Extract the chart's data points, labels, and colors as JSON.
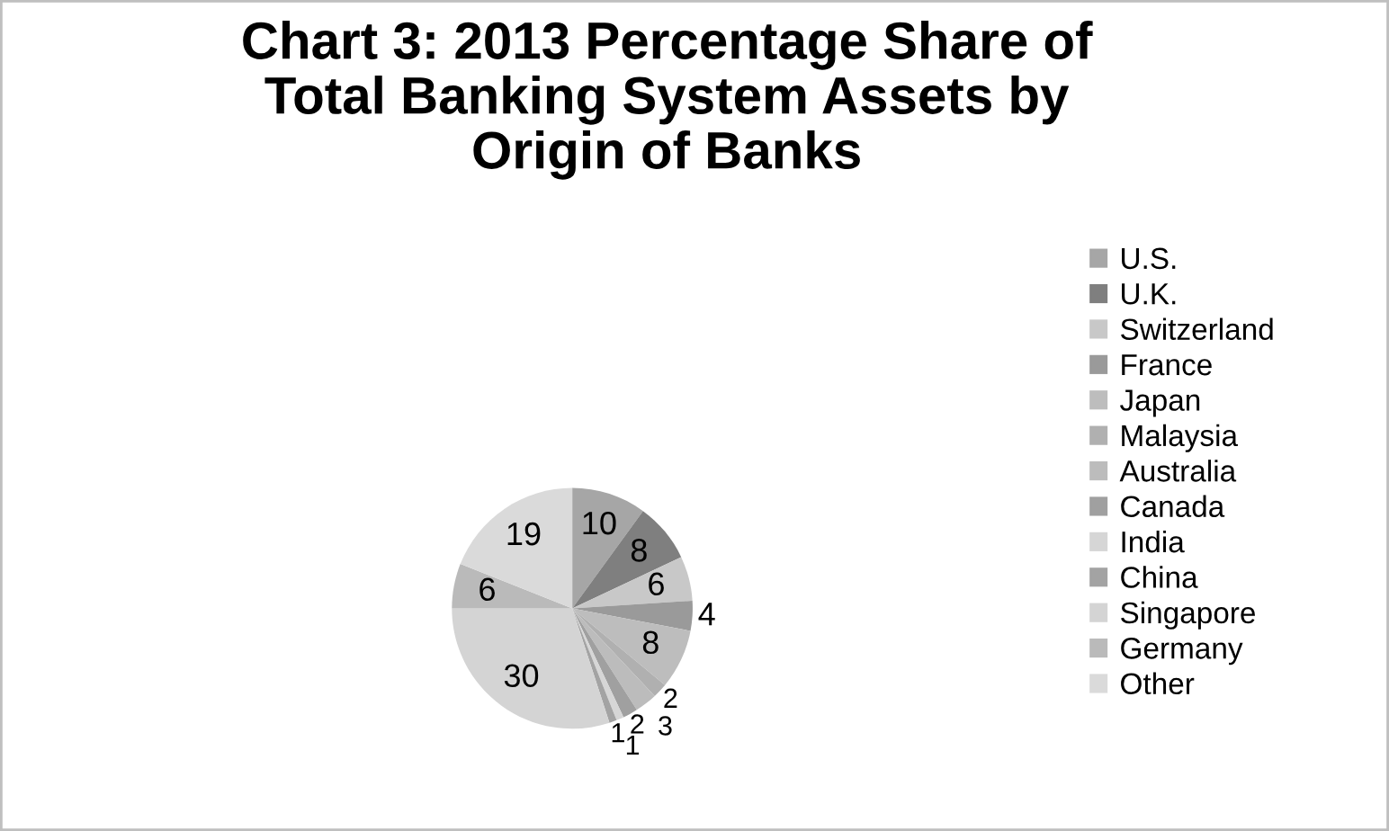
{
  "chart_data": {
    "type": "pie",
    "title": "Chart 3: 2013 Percentage Share of\nTotal Banking System Assets by\nOrigin of Banks",
    "categories": [
      "U.S.",
      "U.K.",
      "Switzerland",
      "France",
      "Japan",
      "Malaysia",
      "Australia",
      "Canada",
      "India",
      "China",
      "Singapore",
      "Germany",
      "Other"
    ],
    "values": [
      10,
      8,
      6,
      4,
      8,
      2,
      3,
      2,
      1,
      1,
      30,
      6,
      19
    ],
    "colors": [
      "#a6a6a6",
      "#7f7f7f",
      "#c8c8c8",
      "#9a9a9a",
      "#bdbdbd",
      "#b0b0b0",
      "#bcbcbc",
      "#a0a0a0",
      "#d6d6d6",
      "#a3a3a3",
      "#d4d4d4",
      "#bababa",
      "#dadada"
    ],
    "data_labels": true,
    "legend": "right"
  }
}
